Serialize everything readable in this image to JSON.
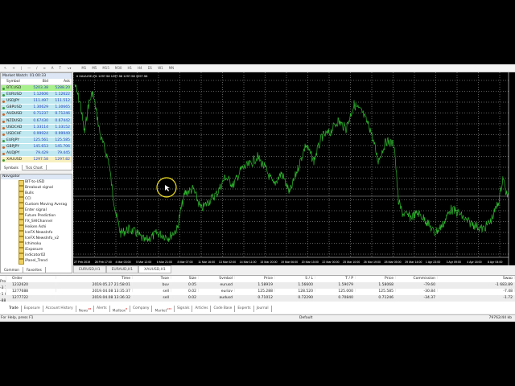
{
  "toolbar": {
    "timeframes": [
      "M1",
      "M5",
      "M15",
      "M30",
      "H1",
      "H4",
      "D1",
      "W1",
      "MN"
    ]
  },
  "market_watch": {
    "title": "Market Watch: 01:00:33",
    "headers": [
      "Symbol",
      "Bid",
      "Ask"
    ],
    "rows": [
      {
        "symbol": "BTCUSD",
        "bid": "5203.38",
        "ask": "5288.20",
        "bg": "#a8f08c",
        "dir": "#3a9a3a"
      },
      {
        "symbol": "EURUSD",
        "bid": "1.12606",
        "ask": "1.12622",
        "bg": "#bfe8f0",
        "dir": "#3a9a3a"
      },
      {
        "symbol": "USDJPY",
        "bid": "111.497",
        "ask": "111.512",
        "bg": "#bfe8f0",
        "dir": "#d06020"
      },
      {
        "symbol": "GBPUSD",
        "bid": "1.30629",
        "ask": "1.30665",
        "bg": "#bfe8f0",
        "dir": "#3a9a3a"
      },
      {
        "symbol": "AUDUSD",
        "bid": "0.71237",
        "ask": "0.71246",
        "bg": "#bfe8f0",
        "dir": "#d06020"
      },
      {
        "symbol": "NZDUSD",
        "bid": "0.67430",
        "ask": "0.67442",
        "bg": "#bfe8f0",
        "dir": "#d06020"
      },
      {
        "symbol": "USDCAD",
        "bid": "1.33114",
        "ask": "1.33152",
        "bg": "#bfe8f0",
        "dir": "#d06020"
      },
      {
        "symbol": "USDCHF",
        "bid": "0.99924",
        "ask": "0.99949",
        "bg": "#bfe8f0",
        "dir": "#d06020"
      },
      {
        "symbol": "EURJPY",
        "bid": "125.561",
        "ask": "125.585",
        "bg": "#bfe8f0",
        "dir": "#3a9a3a"
      },
      {
        "symbol": "GBPJPY",
        "bid": "145.653",
        "ask": "145.706",
        "bg": "#bfe8f0",
        "dir": "#d06020"
      },
      {
        "symbol": "AUDJPY",
        "bid": "79.429",
        "ask": "79.445",
        "bg": "#bfe8f0",
        "dir": "#d06020"
      },
      {
        "symbol": "XAUUSD",
        "bid": "1297.58",
        "ask": "1297.82",
        "bg": "#f8f0c0",
        "dir": "#3a9a3a"
      }
    ],
    "tabs": [
      "Symbols",
      "Tick Chart"
    ]
  },
  "navigator": {
    "title": "Navigator",
    "items": [
      "BIT-to-USD",
      "Breakout signal",
      "Bulls",
      "CCI",
      "Custom Moving Averag",
      "Enter signal",
      "Future Prediction",
      "FX_SHIChannel",
      "Heiken Ashi",
      "IceFX.NewsInfo",
      "IceFX.NewsInfo_v2",
      "Ichimoku",
      "iExposure",
      "indicator02",
      "iPanel_Trend"
    ],
    "tabs": [
      "Common",
      "Favorites"
    ]
  },
  "chart": {
    "title": "XAUUSD,H1 1297.58 1297.58 1297.58 1297.58",
    "line_color": "#2eb82e",
    "time_labels": [
      "27 Feb 2019",
      "28 Feb 17:00",
      "4 Mar 03:00",
      "5 Mar 12:00",
      "6 Mar 21:00",
      "8 Mar 07:00",
      "11 Mar 16:00",
      "13 Mar 02:00",
      "14 Mar 11:00",
      "15 Mar 20:00",
      "19 Mar 06:00",
      "20 Mar 15:00",
      "22 Mar 00:00",
      "25 Mar 10:00",
      "26 Mar 19:00",
      "28 Mar 05:00",
      "29 Mar 14:00",
      "1 Apr 23:00",
      "3 Apr 09:00",
      "4 Apr 18:00",
      "8 Apr 04:00"
    ],
    "tabs": [
      "EURUSD,H1",
      "EURAUD,H1",
      "XAUUSD,H1"
    ]
  },
  "terminal": {
    "headers": [
      "Order",
      "Time",
      "Type",
      "Size",
      "Symbol",
      "Price",
      "S / L",
      "T / P",
      "Price",
      "Commission",
      "Swap",
      "Profit"
    ],
    "rows": [
      [
        "1232620",
        "2019.05.27 21:58:01",
        "buy",
        "0.05",
        "eurusd",
        "1.58919",
        "1.56600",
        "1.59079",
        "1.58068",
        "-79.60",
        "-1 683.89",
        "-3 735.15"
      ],
      [
        "1277688",
        "2019.04.08 13:35:37",
        "sell",
        "0.02",
        "eurjpy",
        "125.288",
        "128.520",
        "125.000",
        "125.585",
        "-30.84",
        "-7.48",
        "-1 007.91"
      ],
      [
        "1277722",
        "2019.04.08 13:36:32",
        "sell",
        "0.02",
        "audusd",
        "0.71012",
        "0.72290",
        "0.70840",
        "0.71246",
        "-34.37",
        "-1.72",
        "-885.53"
      ]
    ],
    "tabs": [
      {
        "label": "Trade"
      },
      {
        "label": "Exposure"
      },
      {
        "label": "Account History"
      },
      {
        "label": "News",
        "badge": "28"
      },
      {
        "label": "Alerts"
      },
      {
        "label": "Mailbox",
        "badge": "8"
      },
      {
        "label": "Company"
      },
      {
        "label": "Market",
        "badge": "133"
      },
      {
        "label": "Signals"
      },
      {
        "label": "Articles"
      },
      {
        "label": "Code Base"
      },
      {
        "label": "Experts"
      },
      {
        "label": "Journal"
      }
    ]
  },
  "status": {
    "help": "For Help, press F1",
    "profile": "Default",
    "traffic": "79762/44 kb"
  }
}
